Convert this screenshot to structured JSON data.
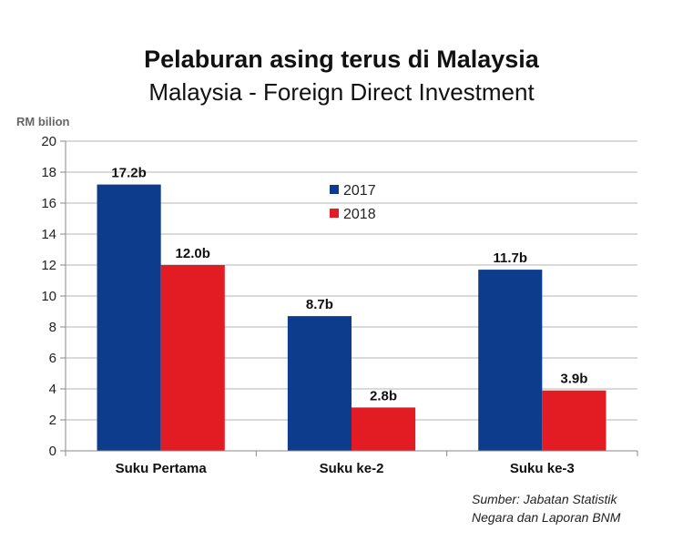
{
  "chart_data": {
    "type": "bar",
    "title": "Pelaburan asing terus di Malaysia",
    "subtitle": "Malaysia - Foreign Direct Investment",
    "ylabel": "RM bilion",
    "xlabel": "",
    "ylim": [
      0,
      20
    ],
    "yticks": [
      0,
      2,
      4,
      6,
      8,
      10,
      12,
      14,
      16,
      18,
      20
    ],
    "grid": true,
    "legend_position": "center-top",
    "categories": [
      "Suku Pertama",
      "Suku ke-2",
      "Suku ke-3"
    ],
    "series": [
      {
        "name": "2017",
        "color": "#0d3c8c",
        "values": [
          17.2,
          8.7,
          11.7
        ],
        "labels": [
          "17.2b",
          "8.7b",
          "11.7b"
        ]
      },
      {
        "name": "2018",
        "color": "#e31b23",
        "values": [
          12.0,
          2.8,
          3.9
        ],
        "labels": [
          "12.0b",
          "2.8b",
          "3.9b"
        ]
      }
    ]
  },
  "source": {
    "line1": "Sumber: Jabatan Statistik",
    "line2": "Negara dan Laporan BNM"
  }
}
